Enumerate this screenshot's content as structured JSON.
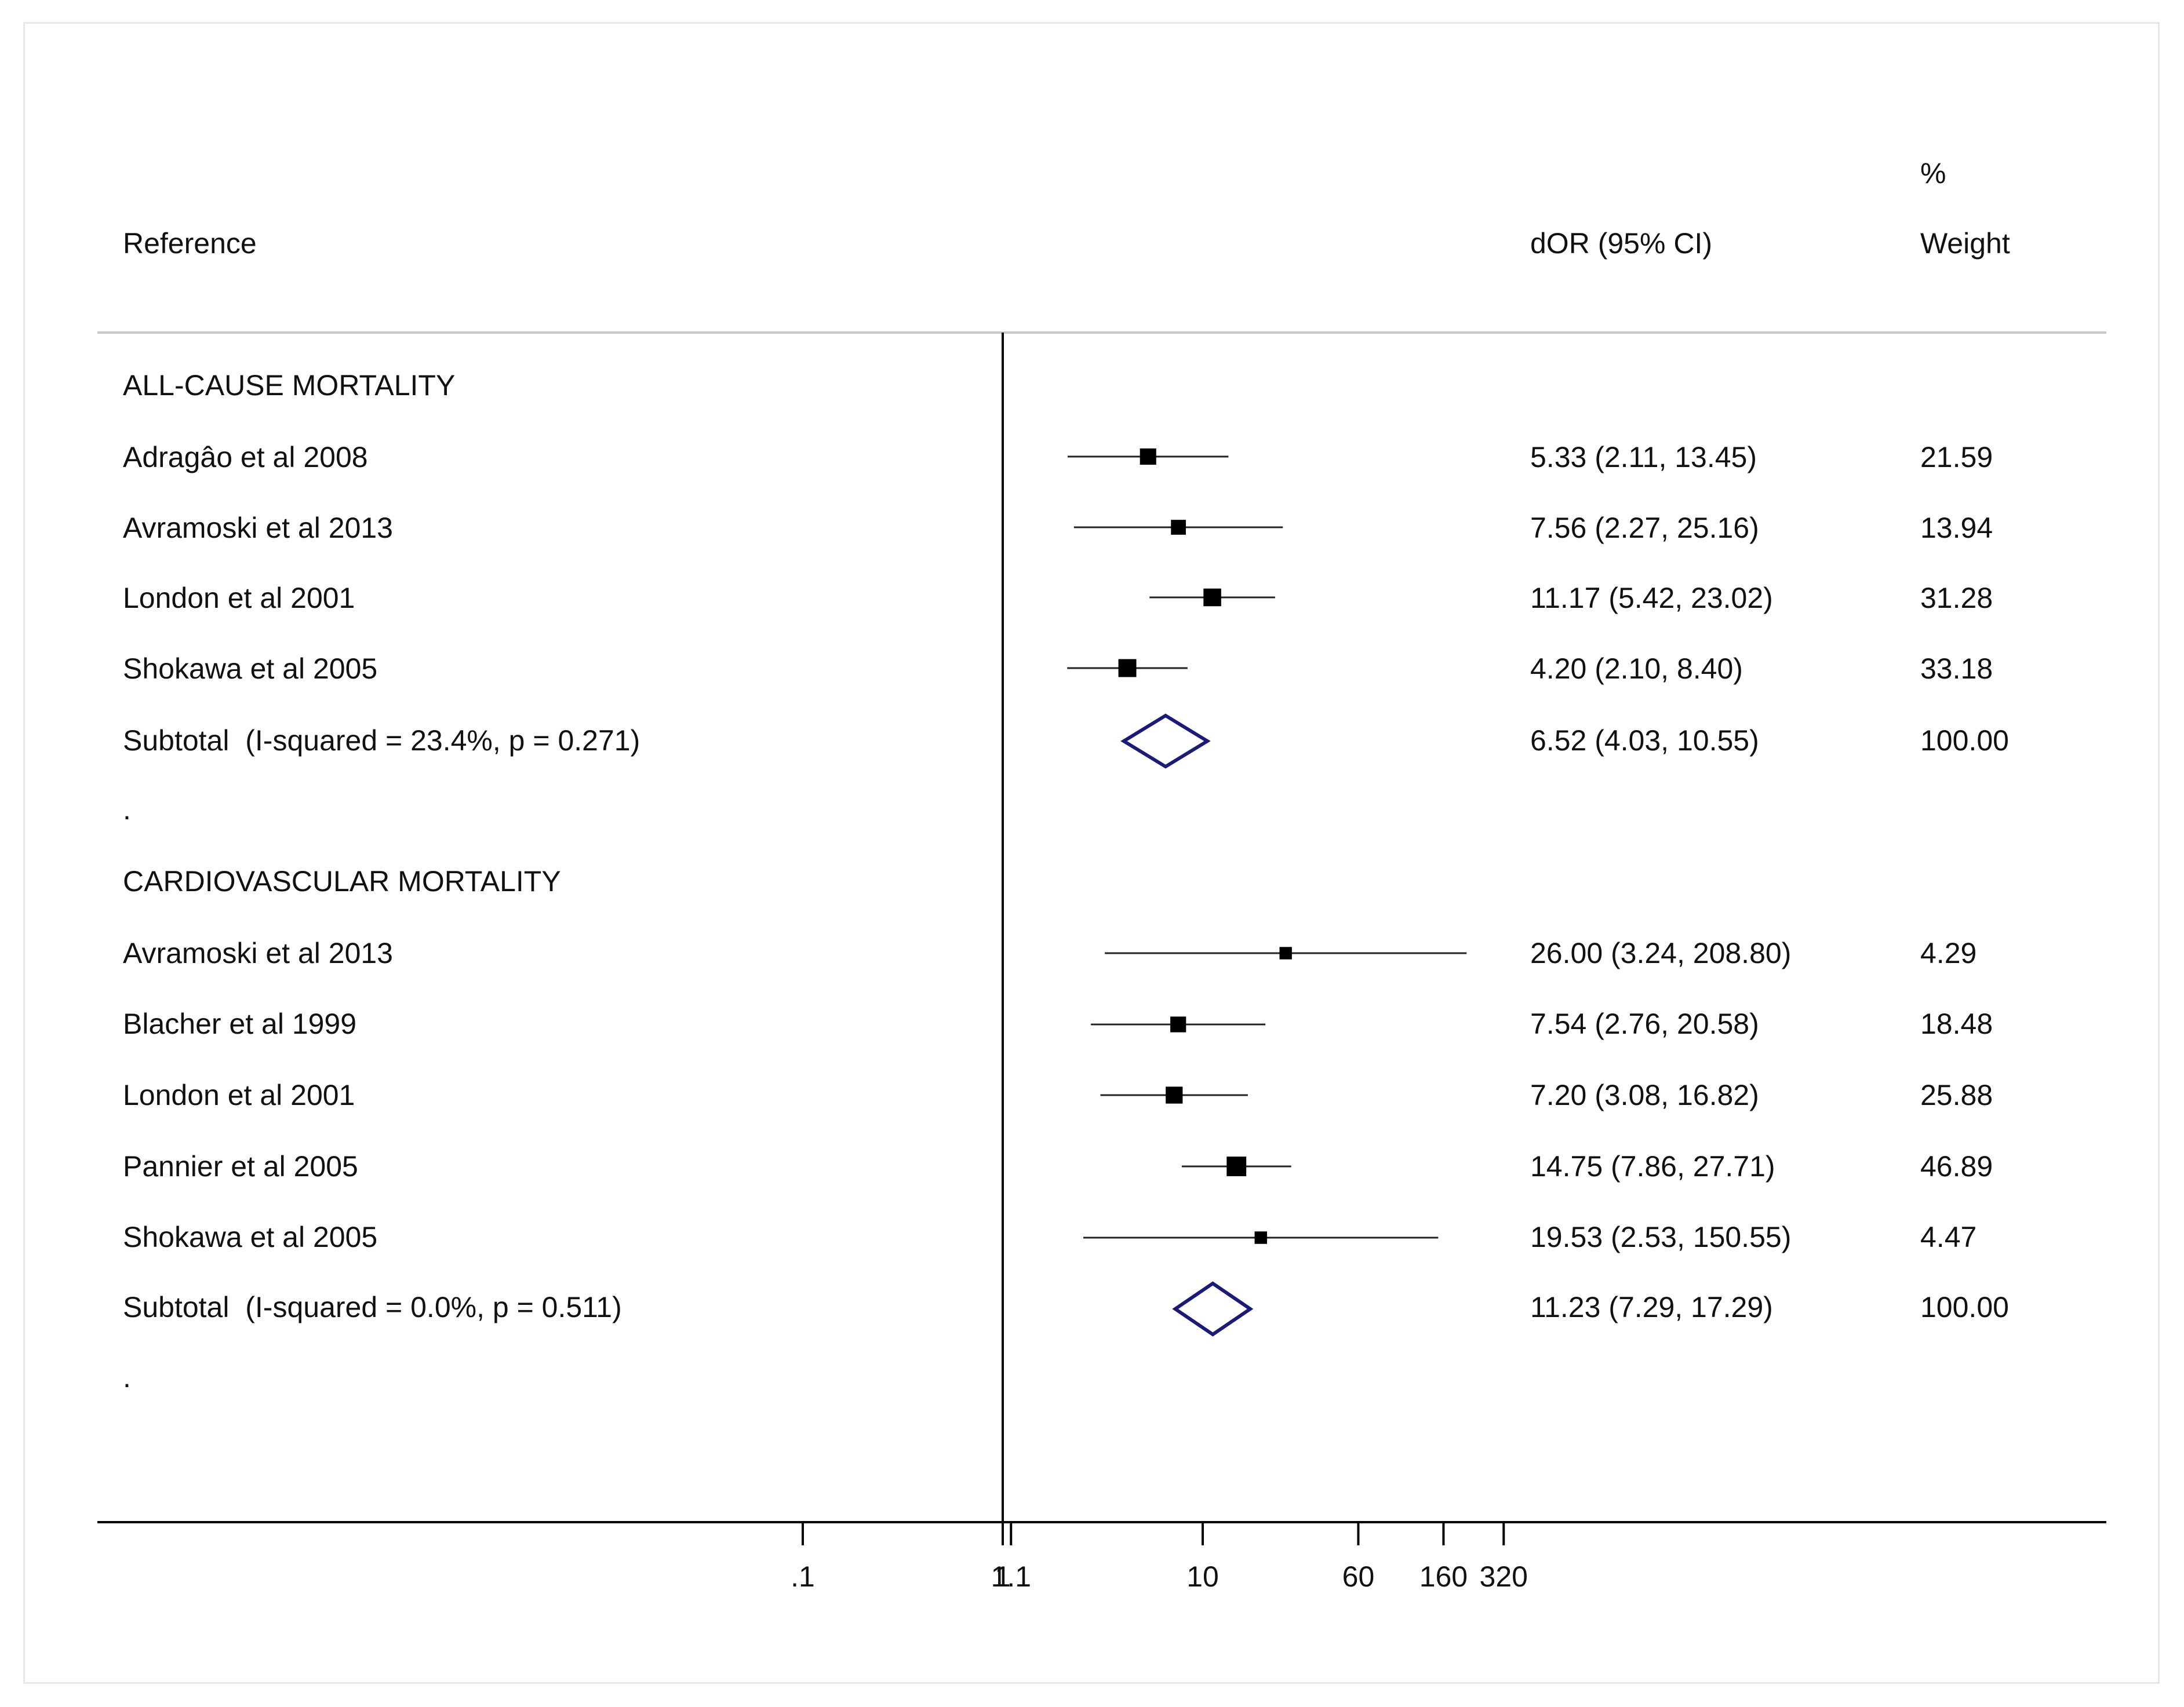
{
  "chart_data": {
    "type": "forest",
    "columns": {
      "reference": "Reference",
      "estimate": "dOR (95% CI)",
      "weight_top": "%",
      "weight_bottom": "Weight"
    },
    "scale": "log",
    "reference_line": 1,
    "x_ticks": [
      {
        "value": 0.1,
        "label": ".1"
      },
      {
        "value": 1,
        "label": "1"
      },
      {
        "value": 1.1,
        "label": "1.1"
      },
      {
        "value": 10,
        "label": "10"
      },
      {
        "value": 60,
        "label": "60"
      },
      {
        "value": 160,
        "label": "160"
      },
      {
        "value": 320,
        "label": "320"
      }
    ],
    "marker_color": "#000000",
    "diamond_color": "#1a1a78",
    "groups": [
      {
        "name": "ALL-CAUSE MORTALITY",
        "studies": [
          {
            "label": "Adragâo et al 2008",
            "est": 5.33,
            "lo": 2.11,
            "hi": 13.45,
            "ci_text": "5.33 (2.11, 13.45)",
            "weight": "21.59"
          },
          {
            "label": "Avramoski et al 2013",
            "est": 7.56,
            "lo": 2.27,
            "hi": 25.16,
            "ci_text": "7.56 (2.27, 25.16)",
            "weight": "13.94"
          },
          {
            "label": "London et al 2001",
            "est": 11.17,
            "lo": 5.42,
            "hi": 23.02,
            "ci_text": "11.17 (5.42, 23.02)",
            "weight": "31.28"
          },
          {
            "label": "Shokawa et al 2005",
            "est": 4.2,
            "lo": 2.1,
            "hi": 8.4,
            "ci_text": "4.20 (2.10, 8.40)",
            "weight": "33.18"
          }
        ],
        "subtotal": {
          "label": "Subtotal  (I-squared = 23.4%, p = 0.271)",
          "est": 6.52,
          "lo": 4.03,
          "hi": 10.55,
          "ci_text": "6.52 (4.03, 10.55)",
          "weight": "100.00"
        }
      },
      {
        "name": "CARDIOVASCULAR MORTALITY",
        "studies": [
          {
            "label": "Avramoski et al 2013",
            "est": 26.0,
            "lo": 3.24,
            "hi": 208.8,
            "ci_text": "26.00 (3.24, 208.80)",
            "weight": "4.29"
          },
          {
            "label": "Blacher et al 1999",
            "est": 7.54,
            "lo": 2.76,
            "hi": 20.58,
            "ci_text": "7.54 (2.76, 20.58)",
            "weight": "18.48"
          },
          {
            "label": "London et al 2001",
            "est": 7.2,
            "lo": 3.08,
            "hi": 16.82,
            "ci_text": "7.20 (3.08, 16.82)",
            "weight": "25.88"
          },
          {
            "label": "Pannier et al 2005",
            "est": 14.75,
            "lo": 7.86,
            "hi": 27.71,
            "ci_text": "14.75 (7.86, 27.71)",
            "weight": "46.89"
          },
          {
            "label": "Shokawa et al 2005",
            "est": 19.53,
            "lo": 2.53,
            "hi": 150.55,
            "ci_text": "19.53 (2.53, 150.55)",
            "weight": "4.47"
          }
        ],
        "subtotal": {
          "label": "Subtotal  (I-squared = 0.0%, p = 0.511)",
          "est": 11.23,
          "lo": 7.29,
          "hi": 17.29,
          "ci_text": "11.23 (7.29, 17.29)",
          "weight": "100.00"
        }
      }
    ],
    "separator": "."
  }
}
